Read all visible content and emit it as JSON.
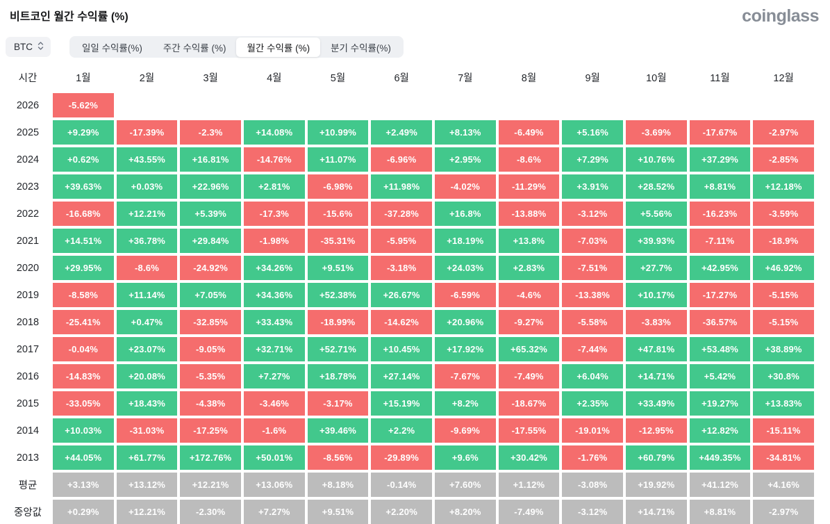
{
  "header": {
    "title": "비트코인 월간 수익률 (%)",
    "logo_text": "coinglass"
  },
  "controls": {
    "coin_select": {
      "value": "BTC"
    },
    "tabs": [
      {
        "id": "daily",
        "label": "일일 수익률(%)",
        "active": false
      },
      {
        "id": "weekly",
        "label": "주간 수익률 (%)",
        "active": false
      },
      {
        "id": "monthly",
        "label": "월간 수익률 (%)",
        "active": true
      },
      {
        "id": "quarterly",
        "label": "분기 수익률(%)",
        "active": false
      }
    ]
  },
  "colors": {
    "positive": "#42c88c",
    "negative": "#f56d6d",
    "summary": "#bcbcbc",
    "cell_text": "#ffffff"
  },
  "chart_data": {
    "type": "heatmap",
    "title": "비트코인 월간 수익률 (%)",
    "corner_label": "시간",
    "months": [
      "1월",
      "2월",
      "3월",
      "4월",
      "5월",
      "6월",
      "7월",
      "8월",
      "9월",
      "10월",
      "11월",
      "12월"
    ],
    "rows": [
      {
        "label": "2026",
        "cells": [
          {
            "v": "-5.62%",
            "c": "neg"
          },
          null,
          null,
          null,
          null,
          null,
          null,
          null,
          null,
          null,
          null,
          null
        ]
      },
      {
        "label": "2025",
        "cells": [
          {
            "v": "+9.29%",
            "c": "pos"
          },
          {
            "v": "-17.39%",
            "c": "neg"
          },
          {
            "v": "-2.3%",
            "c": "neg"
          },
          {
            "v": "+14.08%",
            "c": "pos"
          },
          {
            "v": "+10.99%",
            "c": "pos"
          },
          {
            "v": "+2.49%",
            "c": "pos"
          },
          {
            "v": "+8.13%",
            "c": "pos"
          },
          {
            "v": "-6.49%",
            "c": "neg"
          },
          {
            "v": "+5.16%",
            "c": "pos"
          },
          {
            "v": "-3.69%",
            "c": "neg"
          },
          {
            "v": "-17.67%",
            "c": "neg"
          },
          {
            "v": "-2.97%",
            "c": "neg"
          }
        ]
      },
      {
        "label": "2024",
        "cells": [
          {
            "v": "+0.62%",
            "c": "pos"
          },
          {
            "v": "+43.55%",
            "c": "pos"
          },
          {
            "v": "+16.81%",
            "c": "pos"
          },
          {
            "v": "-14.76%",
            "c": "neg"
          },
          {
            "v": "+11.07%",
            "c": "pos"
          },
          {
            "v": "-6.96%",
            "c": "neg"
          },
          {
            "v": "+2.95%",
            "c": "pos"
          },
          {
            "v": "-8.6%",
            "c": "neg"
          },
          {
            "v": "+7.29%",
            "c": "pos"
          },
          {
            "v": "+10.76%",
            "c": "pos"
          },
          {
            "v": "+37.29%",
            "c": "pos"
          },
          {
            "v": "-2.85%",
            "c": "neg"
          }
        ]
      },
      {
        "label": "2023",
        "cells": [
          {
            "v": "+39.63%",
            "c": "pos"
          },
          {
            "v": "+0.03%",
            "c": "pos"
          },
          {
            "v": "+22.96%",
            "c": "pos"
          },
          {
            "v": "+2.81%",
            "c": "pos"
          },
          {
            "v": "-6.98%",
            "c": "neg"
          },
          {
            "v": "+11.98%",
            "c": "pos"
          },
          {
            "v": "-4.02%",
            "c": "neg"
          },
          {
            "v": "-11.29%",
            "c": "neg"
          },
          {
            "v": "+3.91%",
            "c": "pos"
          },
          {
            "v": "+28.52%",
            "c": "pos"
          },
          {
            "v": "+8.81%",
            "c": "pos"
          },
          {
            "v": "+12.18%",
            "c": "pos"
          }
        ]
      },
      {
        "label": "2022",
        "cells": [
          {
            "v": "-16.68%",
            "c": "neg"
          },
          {
            "v": "+12.21%",
            "c": "pos"
          },
          {
            "v": "+5.39%",
            "c": "pos"
          },
          {
            "v": "-17.3%",
            "c": "neg"
          },
          {
            "v": "-15.6%",
            "c": "neg"
          },
          {
            "v": "-37.28%",
            "c": "neg"
          },
          {
            "v": "+16.8%",
            "c": "pos"
          },
          {
            "v": "-13.88%",
            "c": "neg"
          },
          {
            "v": "-3.12%",
            "c": "neg"
          },
          {
            "v": "+5.56%",
            "c": "pos"
          },
          {
            "v": "-16.23%",
            "c": "neg"
          },
          {
            "v": "-3.59%",
            "c": "neg"
          }
        ]
      },
      {
        "label": "2021",
        "cells": [
          {
            "v": "+14.51%",
            "c": "pos"
          },
          {
            "v": "+36.78%",
            "c": "pos"
          },
          {
            "v": "+29.84%",
            "c": "pos"
          },
          {
            "v": "-1.98%",
            "c": "neg"
          },
          {
            "v": "-35.31%",
            "c": "neg"
          },
          {
            "v": "-5.95%",
            "c": "neg"
          },
          {
            "v": "+18.19%",
            "c": "pos"
          },
          {
            "v": "+13.8%",
            "c": "pos"
          },
          {
            "v": "-7.03%",
            "c": "neg"
          },
          {
            "v": "+39.93%",
            "c": "pos"
          },
          {
            "v": "-7.11%",
            "c": "neg"
          },
          {
            "v": "-18.9%",
            "c": "neg"
          }
        ]
      },
      {
        "label": "2020",
        "cells": [
          {
            "v": "+29.95%",
            "c": "pos"
          },
          {
            "v": "-8.6%",
            "c": "neg"
          },
          {
            "v": "-24.92%",
            "c": "neg"
          },
          {
            "v": "+34.26%",
            "c": "pos"
          },
          {
            "v": "+9.51%",
            "c": "pos"
          },
          {
            "v": "-3.18%",
            "c": "neg"
          },
          {
            "v": "+24.03%",
            "c": "pos"
          },
          {
            "v": "+2.83%",
            "c": "pos"
          },
          {
            "v": "-7.51%",
            "c": "neg"
          },
          {
            "v": "+27.7%",
            "c": "pos"
          },
          {
            "v": "+42.95%",
            "c": "pos"
          },
          {
            "v": "+46.92%",
            "c": "pos"
          }
        ]
      },
      {
        "label": "2019",
        "cells": [
          {
            "v": "-8.58%",
            "c": "neg"
          },
          {
            "v": "+11.14%",
            "c": "pos"
          },
          {
            "v": "+7.05%",
            "c": "pos"
          },
          {
            "v": "+34.36%",
            "c": "pos"
          },
          {
            "v": "+52.38%",
            "c": "pos"
          },
          {
            "v": "+26.67%",
            "c": "pos"
          },
          {
            "v": "-6.59%",
            "c": "neg"
          },
          {
            "v": "-4.6%",
            "c": "neg"
          },
          {
            "v": "-13.38%",
            "c": "neg"
          },
          {
            "v": "+10.17%",
            "c": "pos"
          },
          {
            "v": "-17.27%",
            "c": "neg"
          },
          {
            "v": "-5.15%",
            "c": "neg"
          }
        ]
      },
      {
        "label": "2018",
        "cells": [
          {
            "v": "-25.41%",
            "c": "neg"
          },
          {
            "v": "+0.47%",
            "c": "pos"
          },
          {
            "v": "-32.85%",
            "c": "neg"
          },
          {
            "v": "+33.43%",
            "c": "pos"
          },
          {
            "v": "-18.99%",
            "c": "neg"
          },
          {
            "v": "-14.62%",
            "c": "neg"
          },
          {
            "v": "+20.96%",
            "c": "pos"
          },
          {
            "v": "-9.27%",
            "c": "neg"
          },
          {
            "v": "-5.58%",
            "c": "neg"
          },
          {
            "v": "-3.83%",
            "c": "neg"
          },
          {
            "v": "-36.57%",
            "c": "neg"
          },
          {
            "v": "-5.15%",
            "c": "neg"
          }
        ]
      },
      {
        "label": "2017",
        "cells": [
          {
            "v": "-0.04%",
            "c": "neg"
          },
          {
            "v": "+23.07%",
            "c": "pos"
          },
          {
            "v": "-9.05%",
            "c": "neg"
          },
          {
            "v": "+32.71%",
            "c": "pos"
          },
          {
            "v": "+52.71%",
            "c": "pos"
          },
          {
            "v": "+10.45%",
            "c": "pos"
          },
          {
            "v": "+17.92%",
            "c": "pos"
          },
          {
            "v": "+65.32%",
            "c": "pos"
          },
          {
            "v": "-7.44%",
            "c": "neg"
          },
          {
            "v": "+47.81%",
            "c": "pos"
          },
          {
            "v": "+53.48%",
            "c": "pos"
          },
          {
            "v": "+38.89%",
            "c": "pos"
          }
        ]
      },
      {
        "label": "2016",
        "cells": [
          {
            "v": "-14.83%",
            "c": "neg"
          },
          {
            "v": "+20.08%",
            "c": "pos"
          },
          {
            "v": "-5.35%",
            "c": "neg"
          },
          {
            "v": "+7.27%",
            "c": "pos"
          },
          {
            "v": "+18.78%",
            "c": "pos"
          },
          {
            "v": "+27.14%",
            "c": "pos"
          },
          {
            "v": "-7.67%",
            "c": "neg"
          },
          {
            "v": "-7.49%",
            "c": "neg"
          },
          {
            "v": "+6.04%",
            "c": "pos"
          },
          {
            "v": "+14.71%",
            "c": "pos"
          },
          {
            "v": "+5.42%",
            "c": "pos"
          },
          {
            "v": "+30.8%",
            "c": "pos"
          }
        ]
      },
      {
        "label": "2015",
        "cells": [
          {
            "v": "-33.05%",
            "c": "neg"
          },
          {
            "v": "+18.43%",
            "c": "pos"
          },
          {
            "v": "-4.38%",
            "c": "neg"
          },
          {
            "v": "-3.46%",
            "c": "neg"
          },
          {
            "v": "-3.17%",
            "c": "neg"
          },
          {
            "v": "+15.19%",
            "c": "pos"
          },
          {
            "v": "+8.2%",
            "c": "pos"
          },
          {
            "v": "-18.67%",
            "c": "neg"
          },
          {
            "v": "+2.35%",
            "c": "pos"
          },
          {
            "v": "+33.49%",
            "c": "pos"
          },
          {
            "v": "+19.27%",
            "c": "pos"
          },
          {
            "v": "+13.83%",
            "c": "pos"
          }
        ]
      },
      {
        "label": "2014",
        "cells": [
          {
            "v": "+10.03%",
            "c": "pos"
          },
          {
            "v": "-31.03%",
            "c": "neg"
          },
          {
            "v": "-17.25%",
            "c": "neg"
          },
          {
            "v": "-1.6%",
            "c": "neg"
          },
          {
            "v": "+39.46%",
            "c": "pos"
          },
          {
            "v": "+2.2%",
            "c": "pos"
          },
          {
            "v": "-9.69%",
            "c": "neg"
          },
          {
            "v": "-17.55%",
            "c": "neg"
          },
          {
            "v": "-19.01%",
            "c": "neg"
          },
          {
            "v": "-12.95%",
            "c": "neg"
          },
          {
            "v": "+12.82%",
            "c": "pos"
          },
          {
            "v": "-15.11%",
            "c": "neg"
          }
        ]
      },
      {
        "label": "2013",
        "cells": [
          {
            "v": "+44.05%",
            "c": "pos"
          },
          {
            "v": "+61.77%",
            "c": "pos"
          },
          {
            "v": "+172.76%",
            "c": "pos"
          },
          {
            "v": "+50.01%",
            "c": "pos"
          },
          {
            "v": "-8.56%",
            "c": "neg"
          },
          {
            "v": "-29.89%",
            "c": "neg"
          },
          {
            "v": "+9.6%",
            "c": "pos"
          },
          {
            "v": "+30.42%",
            "c": "pos"
          },
          {
            "v": "-1.76%",
            "c": "neg"
          },
          {
            "v": "+60.79%",
            "c": "pos"
          },
          {
            "v": "+449.35%",
            "c": "pos"
          },
          {
            "v": "-34.81%",
            "c": "neg"
          }
        ]
      },
      {
        "label": "평균",
        "cells": [
          {
            "v": "+3.13%",
            "c": "sum"
          },
          {
            "v": "+13.12%",
            "c": "sum"
          },
          {
            "v": "+12.21%",
            "c": "sum"
          },
          {
            "v": "+13.06%",
            "c": "sum"
          },
          {
            "v": "+8.18%",
            "c": "sum"
          },
          {
            "v": "-0.14%",
            "c": "sum"
          },
          {
            "v": "+7.60%",
            "c": "sum"
          },
          {
            "v": "+1.12%",
            "c": "sum"
          },
          {
            "v": "-3.08%",
            "c": "sum"
          },
          {
            "v": "+19.92%",
            "c": "sum"
          },
          {
            "v": "+41.12%",
            "c": "sum"
          },
          {
            "v": "+4.16%",
            "c": "sum"
          }
        ]
      },
      {
        "label": "중앙값",
        "cells": [
          {
            "v": "+0.29%",
            "c": "sum"
          },
          {
            "v": "+12.21%",
            "c": "sum"
          },
          {
            "v": "-2.30%",
            "c": "sum"
          },
          {
            "v": "+7.27%",
            "c": "sum"
          },
          {
            "v": "+9.51%",
            "c": "sum"
          },
          {
            "v": "+2.20%",
            "c": "sum"
          },
          {
            "v": "+8.20%",
            "c": "sum"
          },
          {
            "v": "-7.49%",
            "c": "sum"
          },
          {
            "v": "-3.12%",
            "c": "sum"
          },
          {
            "v": "+14.71%",
            "c": "sum"
          },
          {
            "v": "+8.81%",
            "c": "sum"
          },
          {
            "v": "-2.97%",
            "c": "sum"
          }
        ]
      }
    ]
  }
}
